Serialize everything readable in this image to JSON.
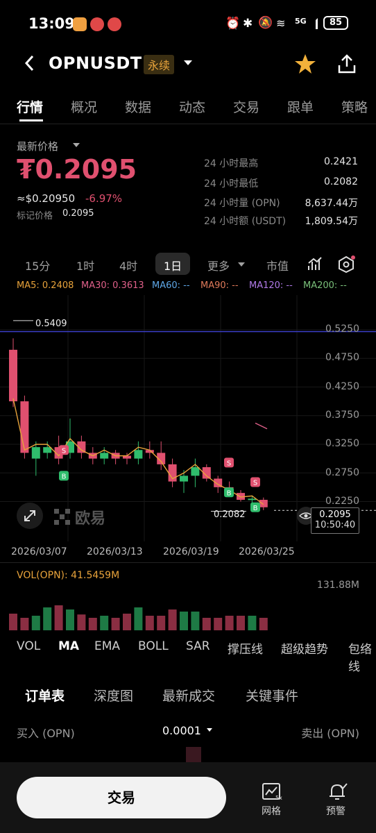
{
  "status_bar": {
    "time": "13:09",
    "battery": "85",
    "network": "5G"
  },
  "header": {
    "symbol": "OPNUSDT",
    "badge": "永续"
  },
  "tabs": [
    "行情",
    "概况",
    "数据",
    "动态",
    "交易",
    "跟单",
    "策略"
  ],
  "price": {
    "label": "最新价格",
    "last": "₮0.2095",
    "usd": "≈$0.20950",
    "change": "-6.97%",
    "mark_label": "标记价格",
    "mark_value": "0.2095"
  },
  "stats": [
    {
      "label": "24 小时最高",
      "value": "0.2421"
    },
    {
      "label": "24 小时最低",
      "value": "0.2082"
    },
    {
      "label": "24 小时量 (OPN)",
      "value": "8,637.44万"
    },
    {
      "label": "24 小时额 (USDT)",
      "value": "1,809.54万"
    }
  ],
  "intervals": [
    "15分",
    "1时",
    "4时",
    "1日",
    "更多",
    "市值"
  ],
  "ma_line": [
    {
      "text": "MA5: 0.2408",
      "color": "#e8a33b"
    },
    {
      "text": "MA30: 0.3613",
      "color": "#e0608a"
    },
    {
      "text": "MA60: --",
      "color": "#5fa8e8"
    },
    {
      "text": "MA90: --",
      "color": "#e07a5a"
    },
    {
      "text": "MA120: --",
      "color": "#b07ae8"
    },
    {
      "text": "MA200: --",
      "color": "#7ac07a"
    }
  ],
  "chart_data": {
    "type": "candlestick",
    "y_ticks": [
      "0.5250",
      "0.4750",
      "0.4250",
      "0.3750",
      "0.3250",
      "0.2750",
      "0.2250"
    ],
    "x_ticks": [
      "2026/03/07",
      "2026/03/13",
      "2026/03/19",
      "2026/03/25"
    ],
    "high_marker": "0.5409",
    "low_marker": "0.2082",
    "current_price": "0.2095",
    "countdown": "10:50:40",
    "watermark": "欧易",
    "candles": [
      {
        "o": 0.49,
        "c": 0.4,
        "h": 0.51,
        "l": 0.39
      },
      {
        "o": 0.4,
        "c": 0.31,
        "h": 0.41,
        "l": 0.3
      },
      {
        "o": 0.3,
        "c": 0.32,
        "h": 0.33,
        "l": 0.27
      },
      {
        "o": 0.31,
        "c": 0.32,
        "h": 0.33,
        "l": 0.3
      },
      {
        "o": 0.32,
        "c": 0.3,
        "h": 0.34,
        "l": 0.29
      },
      {
        "o": 0.31,
        "c": 0.33,
        "h": 0.37,
        "l": 0.3
      },
      {
        "o": 0.33,
        "c": 0.31,
        "h": 0.34,
        "l": 0.3
      },
      {
        "o": 0.31,
        "c": 0.3,
        "h": 0.32,
        "l": 0.29
      },
      {
        "o": 0.3,
        "c": 0.31,
        "h": 0.32,
        "l": 0.29
      },
      {
        "o": 0.31,
        "c": 0.3,
        "h": 0.315,
        "l": 0.29
      },
      {
        "o": 0.305,
        "c": 0.3,
        "h": 0.31,
        "l": 0.29
      },
      {
        "o": 0.3,
        "c": 0.315,
        "h": 0.33,
        "l": 0.29
      },
      {
        "o": 0.315,
        "c": 0.31,
        "h": 0.33,
        "l": 0.3
      },
      {
        "o": 0.31,
        "c": 0.29,
        "h": 0.33,
        "l": 0.28
      },
      {
        "o": 0.29,
        "c": 0.26,
        "h": 0.3,
        "l": 0.25
      },
      {
        "o": 0.26,
        "c": 0.27,
        "h": 0.28,
        "l": 0.24
      },
      {
        "o": 0.27,
        "c": 0.285,
        "h": 0.3,
        "l": 0.25
      },
      {
        "o": 0.285,
        "c": 0.265,
        "h": 0.29,
        "l": 0.26
      },
      {
        "o": 0.265,
        "c": 0.25,
        "h": 0.27,
        "l": 0.24
      },
      {
        "o": 0.25,
        "c": 0.24,
        "h": 0.26,
        "l": 0.235
      },
      {
        "o": 0.24,
        "c": 0.228,
        "h": 0.245,
        "l": 0.225
      },
      {
        "o": 0.228,
        "c": 0.23,
        "h": 0.235,
        "l": 0.22
      },
      {
        "o": 0.228,
        "c": 0.215,
        "h": 0.232,
        "l": 0.21
      }
    ],
    "volume_label": "VOL(OPN): 41.5459M",
    "volume_max": "131.88M",
    "volumes": [
      0.4,
      0.3,
      0.35,
      0.55,
      0.6,
      0.5,
      0.38,
      0.3,
      0.35,
      0.3,
      0.4,
      0.55,
      0.35,
      0.35,
      0.5,
      0.45,
      0.45,
      0.3,
      0.3,
      0.35,
      0.35,
      0.35,
      0.3
    ]
  },
  "indicators": [
    "VOL",
    "MA",
    "EMA",
    "BOLL",
    "SAR",
    "撑压线",
    "超级趋势",
    "包络线"
  ],
  "orderbook": {
    "tabs": [
      "订单表",
      "深度图",
      "最新成交",
      "关键事件"
    ],
    "buy_header": "买入 (OPN)",
    "precision": "0.0001",
    "sell_header": "卖出 (OPN)"
  },
  "bottom_bar": {
    "trade_label": "交易",
    "grid_label": "网格",
    "alert_label": "预警"
  },
  "colors": {
    "up": "#2fbd6c",
    "down": "#e0506f",
    "accent": "#e8a33b"
  }
}
